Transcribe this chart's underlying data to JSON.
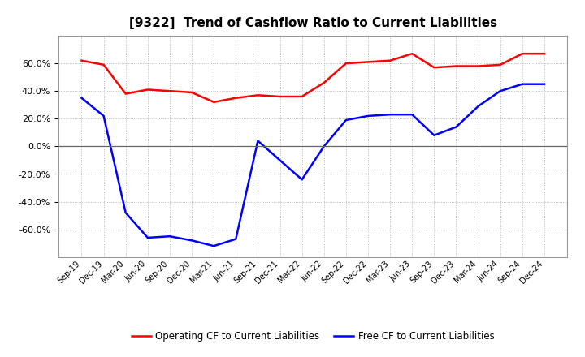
{
  "title": "[9322]  Trend of Cashflow Ratio to Current Liabilities",
  "x_labels": [
    "Sep-19",
    "Dec-19",
    "Mar-20",
    "Jun-20",
    "Sep-20",
    "Dec-20",
    "Mar-21",
    "Jun-21",
    "Sep-21",
    "Dec-21",
    "Mar-22",
    "Jun-22",
    "Sep-22",
    "Dec-22",
    "Mar-23",
    "Jun-23",
    "Sep-23",
    "Dec-23",
    "Mar-24",
    "Jun-24",
    "Sep-24",
    "Dec-24"
  ],
  "operating_cf": [
    0.62,
    0.59,
    0.38,
    0.41,
    0.4,
    0.39,
    0.32,
    0.35,
    0.37,
    0.36,
    0.36,
    0.46,
    0.6,
    0.61,
    0.62,
    0.67,
    0.57,
    0.58,
    0.58,
    0.59,
    0.67,
    0.67
  ],
  "free_cf": [
    0.35,
    0.22,
    -0.48,
    -0.66,
    -0.65,
    -0.68,
    -0.72,
    -0.67,
    0.04,
    -0.1,
    -0.24,
    0.0,
    0.19,
    0.22,
    0.23,
    0.23,
    0.08,
    0.14,
    0.29,
    0.4,
    0.45,
    0.45
  ],
  "ylim": [
    -0.8,
    0.8
  ],
  "yticks": [
    -0.6,
    -0.4,
    -0.2,
    0.0,
    0.2,
    0.4,
    0.6
  ],
  "operating_color": "#ff0000",
  "free_color": "#0000ff",
  "legend_operating": "Operating CF to Current Liabilities",
  "legend_free": "Free CF to Current Liabilities",
  "bg_color": "#ffffff",
  "plot_bg_color": "#ffffff",
  "grid_color": "#aaaaaa",
  "linewidth": 1.8,
  "title_fontsize": 11
}
